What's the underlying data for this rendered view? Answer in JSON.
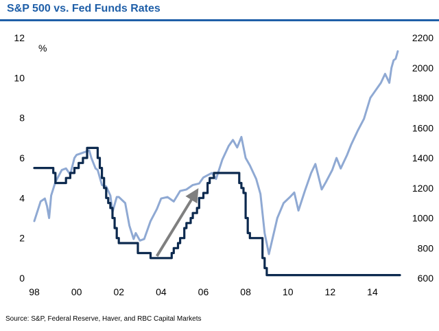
{
  "header": {
    "title": "S&P 500 vs. Fed Funds Rates"
  },
  "footer": {
    "source": "Source: S&P, Federal Reserve, Haver, and RBC Capital Markets"
  },
  "colors": {
    "title": "#1f5fa8",
    "fed_funds": "#0d2a4f",
    "sp500": "#8fa9d3",
    "arrow": "#7f7f7f"
  },
  "chart_data": {
    "type": "line",
    "title": "S&P 500 vs. Fed Funds Rates",
    "x_range": [
      1998,
      2015.3
    ],
    "x_ticks": [
      1998,
      2000,
      2002,
      2004,
      2006,
      2008,
      2010,
      2012,
      2014
    ],
    "x_tick_labels": [
      "98",
      "00",
      "02",
      "04",
      "06",
      "08",
      "10",
      "12",
      "14"
    ],
    "y_left": {
      "label": "%",
      "range": [
        0,
        12
      ],
      "ticks": [
        0,
        2,
        4,
        6,
        8,
        10,
        12
      ]
    },
    "y_right": {
      "range": [
        600,
        2200
      ],
      "ticks": [
        600,
        800,
        1000,
        1200,
        1400,
        1600,
        1800,
        2000,
        2200
      ]
    },
    "grid": false,
    "series": [
      {
        "key": "fed_funds",
        "axis": "left",
        "style": "step",
        "x": [
          1998.0,
          1998.9,
          1999.0,
          1999.5,
          1999.7,
          1999.9,
          2000.1,
          2000.3,
          2000.5,
          2001.0,
          2001.1,
          2001.2,
          2001.3,
          2001.4,
          2001.5,
          2001.6,
          2001.7,
          2001.8,
          2001.9,
          2002.0,
          2002.9,
          2003.5,
          2004.5,
          2004.6,
          2004.8,
          2004.9,
          2005.1,
          2005.2,
          2005.4,
          2005.5,
          2005.7,
          2005.8,
          2006.0,
          2006.2,
          2006.3,
          2006.5,
          2007.7,
          2007.8,
          2007.9,
          2008.0,
          2008.1,
          2008.2,
          2008.3,
          2008.8,
          2008.9,
          2009.0,
          2015.3
        ],
        "y": [
          5.5,
          5.25,
          4.75,
          5.0,
          5.25,
          5.5,
          5.75,
          6.0,
          6.5,
          6.0,
          5.5,
          5.0,
          4.5,
          4.0,
          3.75,
          3.5,
          3.0,
          2.5,
          2.0,
          1.75,
          1.25,
          1.0,
          1.25,
          1.5,
          1.75,
          2.0,
          2.5,
          2.75,
          3.0,
          3.25,
          3.5,
          4.0,
          4.25,
          4.75,
          5.0,
          5.25,
          4.75,
          4.5,
          4.25,
          3.0,
          2.25,
          2.0,
          2.0,
          1.0,
          0.5,
          0.15,
          0.15
        ]
      },
      {
        "key": "sp500",
        "axis": "right",
        "style": "line",
        "x": [
          1998.0,
          1998.3,
          1998.5,
          1998.6,
          1998.7,
          1998.8,
          1999.0,
          1999.3,
          1999.5,
          1999.7,
          1999.9,
          2000.0,
          2000.2,
          2000.4,
          2000.6,
          2000.7,
          2000.9,
          2001.0,
          2001.2,
          2001.4,
          2001.6,
          2001.7,
          2001.9,
          2002.0,
          2002.3,
          2002.5,
          2002.7,
          2002.8,
          2003.0,
          2003.2,
          2003.5,
          2003.8,
          2004.0,
          2004.3,
          2004.6,
          2004.9,
          2005.2,
          2005.5,
          2005.8,
          2006.0,
          2006.4,
          2006.6,
          2006.9,
          2007.2,
          2007.4,
          2007.6,
          2007.8,
          2008.0,
          2008.2,
          2008.5,
          2008.7,
          2008.9,
          2009.1,
          2009.2,
          2009.5,
          2009.8,
          2010.1,
          2010.3,
          2010.5,
          2010.8,
          2011.1,
          2011.3,
          2011.6,
          2011.8,
          2012.1,
          2012.3,
          2012.5,
          2012.8,
          2013.0,
          2013.3,
          2013.6,
          2013.9,
          2014.1,
          2014.4,
          2014.6,
          2014.8,
          2014.9,
          2015.0,
          2015.1,
          2015.2
        ],
        "y": [
          980,
          1110,
          1130,
          1080,
          1000,
          1150,
          1240,
          1320,
          1330,
          1290,
          1400,
          1420,
          1430,
          1440,
          1450,
          1400,
          1330,
          1320,
          1220,
          1210,
          1150,
          1040,
          1140,
          1140,
          1100,
          950,
          860,
          900,
          850,
          860,
          980,
          1060,
          1130,
          1140,
          1110,
          1180,
          1190,
          1220,
          1230,
          1270,
          1300,
          1260,
          1390,
          1480,
          1520,
          1470,
          1540,
          1400,
          1350,
          1260,
          1160,
          900,
          760,
          820,
          1000,
          1100,
          1140,
          1170,
          1050,
          1180,
          1300,
          1360,
          1190,
          1240,
          1320,
          1400,
          1330,
          1420,
          1490,
          1580,
          1660,
          1800,
          1840,
          1900,
          1960,
          1900,
          2000,
          2050,
          2060,
          2110
        ]
      }
    ],
    "annotations": [
      {
        "type": "arrow",
        "from": [
          2003.8,
          1.1
        ],
        "to": [
          2005.6,
          4.2
        ]
      }
    ]
  }
}
